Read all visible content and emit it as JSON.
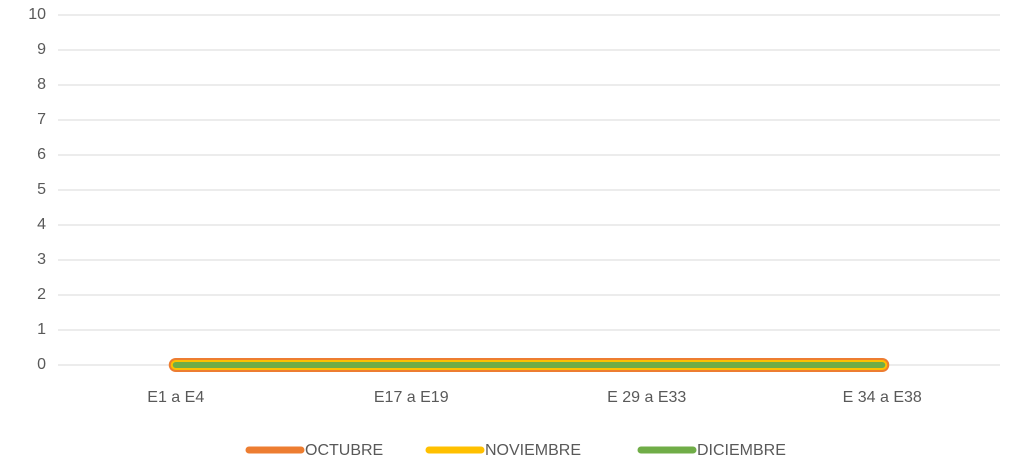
{
  "chart_data": {
    "type": "line",
    "categories": [
      "E1 a E4",
      "E17 a E19",
      "E 29 a E33",
      "E 34 a E38"
    ],
    "series": [
      {
        "name": "OCTUBRE",
        "color": "#ed7d31",
        "values": [
          0,
          0,
          0,
          0
        ]
      },
      {
        "name": "NOVIEMBRE",
        "color": "#ffc000",
        "values": [
          0,
          0,
          0,
          0
        ]
      },
      {
        "name": "DICIEMBRE",
        "color": "#70ad47",
        "values": [
          0,
          0,
          0,
          0
        ]
      }
    ],
    "ylim": [
      0,
      10
    ],
    "yticks": [
      0,
      1,
      2,
      3,
      4,
      5,
      6,
      7,
      8,
      9,
      10
    ],
    "grid": true,
    "legend": "bottom"
  }
}
